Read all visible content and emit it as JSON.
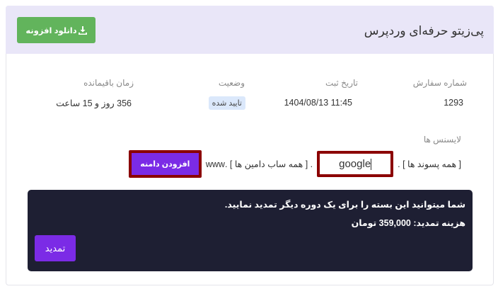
{
  "header": {
    "title": "پی‌زیتو حرفه‌ای وردپرس",
    "download_label": "دانلود افزونه",
    "download_icon": "download-icon"
  },
  "info": {
    "order_number_label": "شماره سفارش",
    "order_number": "1293",
    "date_label": "تاریخ ثبت",
    "date": "1404/08/13 11:45",
    "status_label": "وضعیت",
    "status": "تایید شده",
    "remaining_label": "زمان باقیمانده",
    "remaining": "356 روز و 15 ساعت"
  },
  "licenses": {
    "label": "لایسنس ها",
    "suffix_text": "[ همه پسوند ها ] .",
    "domain_value": "google",
    "subdomain_text": ". [ همه ساب دامین ها ] .www",
    "add_domain_label": "افزودن دامنه"
  },
  "renewal": {
    "message": "شما میتوانید این بسته را برای یک دوره دیگر تمدید نمایید.",
    "cost_text": "هزینه تمدید: 359,000 تومان",
    "button_label": "تمدید"
  },
  "colors": {
    "header_bg": "#e9e6f8",
    "download_green": "#62b45c",
    "accent_purple": "#7b2be6",
    "dark_panel": "#1e1f33",
    "highlight_red": "#8b0000"
  }
}
